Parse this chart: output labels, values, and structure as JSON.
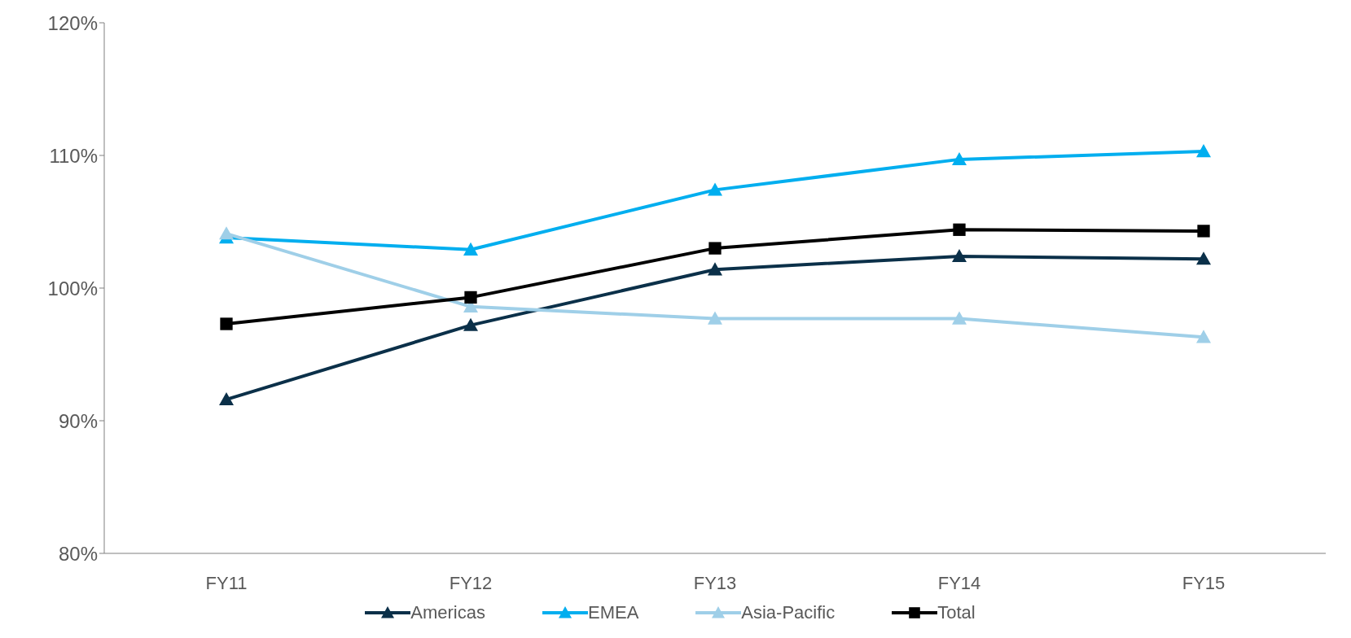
{
  "chart_data": {
    "type": "line",
    "categories": [
      "FY11",
      "FY12",
      "FY13",
      "FY14",
      "FY15"
    ],
    "series": [
      {
        "name": "Americas",
        "color": "#0b3049",
        "marker": "triangle",
        "values": [
          91.6,
          97.2,
          101.4,
          102.4,
          102.2
        ]
      },
      {
        "name": "EMEA",
        "color": "#00aeef",
        "marker": "triangle",
        "values": [
          103.8,
          102.9,
          107.4,
          109.7,
          110.3
        ]
      },
      {
        "name": "Asia-Pacific",
        "color": "#9fcfe8",
        "marker": "triangle",
        "values": [
          104.1,
          98.6,
          97.7,
          97.7,
          96.3
        ]
      },
      {
        "name": "Total",
        "color": "#000000",
        "marker": "square",
        "values": [
          97.3,
          99.3,
          103.0,
          104.4,
          104.3
        ]
      }
    ],
    "ylim": [
      80,
      120
    ],
    "yticks": [
      {
        "value": 80,
        "label": "80%"
      },
      {
        "value": 90,
        "label": "90%"
      },
      {
        "value": 100,
        "label": "100%"
      },
      {
        "value": 110,
        "label": "110%"
      },
      {
        "value": 120,
        "label": "120%"
      }
    ],
    "grid": false,
    "legend": "bottom",
    "line_style": "solid"
  }
}
